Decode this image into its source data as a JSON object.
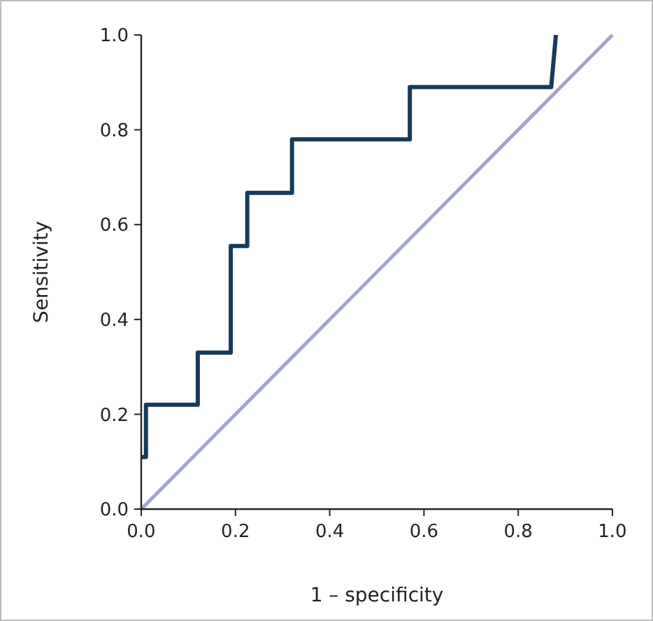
{
  "chart_data": {
    "type": "line",
    "xlabel": "1 – specificity",
    "ylabel": "Sensitivity",
    "xlim": [
      0,
      1
    ],
    "ylim": [
      0,
      1
    ],
    "xticks": [
      {
        "value": 0,
        "label": "0.0"
      },
      {
        "value": 0.2,
        "label": "0.2"
      },
      {
        "value": 0.4,
        "label": "0.4"
      },
      {
        "value": 0.6,
        "label": "0.6"
      },
      {
        "value": 0.8,
        "label": "0.8"
      },
      {
        "value": 1,
        "label": "1.0"
      }
    ],
    "yticks": [
      {
        "value": 0,
        "label": "0.0"
      },
      {
        "value": 0.2,
        "label": "0.2"
      },
      {
        "value": 0.4,
        "label": "0.4"
      },
      {
        "value": 0.6,
        "label": "0.6"
      },
      {
        "value": 0.8,
        "label": "0.8"
      },
      {
        "value": 1,
        "label": "1.0"
      }
    ],
    "grid": false,
    "marker": "none",
    "line_style": "solid",
    "series": [
      {
        "color": "#9fa6cc",
        "x": [
          0,
          1
        ],
        "values": [
          0,
          1
        ]
      },
      {
        "color": "#163a5a",
        "x": [
          0,
          0.01,
          0.01,
          0.12,
          0.12,
          0.19,
          0.19,
          0.225,
          0.225,
          0.32,
          0.32,
          0.57,
          0.57,
          0.87,
          0.88
        ],
        "values": [
          0.11,
          0.11,
          0.22,
          0.22,
          0.33,
          0.33,
          0.555,
          0.555,
          0.667,
          0.667,
          0.78,
          0.78,
          0.89,
          0.89,
          1.0
        ]
      }
    ]
  }
}
